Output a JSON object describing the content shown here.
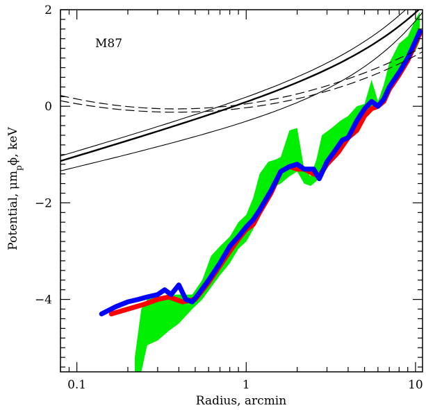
{
  "chart_data": {
    "type": "line",
    "xscale": "log",
    "xlabel": "Radius, arcmin",
    "ylabel": "Potential, μm",
    "ylabel_subscript": "p",
    "ylabel_after": "ϕ, keV",
    "annotation": "M87",
    "xlim": [
      0.08,
      11
    ],
    "ylim": [
      -5.5,
      2
    ],
    "x_ticks": [
      {
        "value": 0.1,
        "label": "0.1"
      },
      {
        "value": 1,
        "label": "1"
      },
      {
        "value": 10,
        "label": "10"
      }
    ],
    "y_ticks": [
      {
        "value": -4,
        "label": "−4"
      },
      {
        "value": -2,
        "label": "−2"
      },
      {
        "value": 0,
        "label": "0"
      },
      {
        "value": 2,
        "label": "2"
      }
    ],
    "grid": false,
    "legend": "none",
    "colors": {
      "green": "#00ee00",
      "red": "#ff0000",
      "blue": "#0000ff",
      "black": "#000000"
    },
    "green_band": {
      "x": [
        0.22,
        0.24,
        0.26,
        0.3,
        0.35,
        0.4,
        0.48,
        0.55,
        0.62,
        0.7,
        0.8,
        0.9,
        1.0,
        1.1,
        1.2,
        1.35,
        1.5,
        1.6,
        1.8,
        2.0,
        2.2,
        2.4,
        2.6,
        2.8,
        3.2,
        3.6,
        4.0,
        4.5,
        5.0,
        5.5,
        6.0,
        6.5,
        7.0,
        8.0,
        9.0,
        10.0,
        10.6
      ],
      "upper": [
        -5.2,
        -4.2,
        -4.0,
        -3.95,
        -3.9,
        -3.9,
        -3.9,
        -3.6,
        -3.1,
        -2.9,
        -2.7,
        -2.4,
        -2.25,
        -1.9,
        -1.4,
        -1.15,
        -1.1,
        -1.05,
        -0.5,
        -0.45,
        -1.3,
        -1.45,
        -1.1,
        -0.6,
        -0.45,
        -0.3,
        -0.2,
        0.0,
        0.05,
        0.55,
        0.1,
        0.45,
        0.9,
        1.3,
        1.45,
        1.8,
        1.95
      ],
      "lower": [
        -5.5,
        -5.5,
        -4.95,
        -4.85,
        -4.65,
        -4.5,
        -4.2,
        -4.0,
        -3.75,
        -3.5,
        -3.25,
        -2.95,
        -2.8,
        -2.55,
        -2.2,
        -1.9,
        -1.65,
        -1.6,
        -1.45,
        -1.35,
        -1.6,
        -1.65,
        -1.55,
        -1.3,
        -1.05,
        -0.85,
        -0.65,
        -0.4,
        -0.25,
        0.0,
        -0.05,
        0.1,
        0.25,
        0.65,
        0.95,
        1.15,
        1.35
      ]
    },
    "series": [
      {
        "color": "#ff0000",
        "width": 7,
        "x": [
          0.16,
          0.2,
          0.25,
          0.3,
          0.35,
          0.42,
          0.5,
          0.6,
          0.7,
          0.8,
          0.9,
          1.0,
          1.1,
          1.2,
          1.4,
          1.6,
          1.8,
          2.0,
          2.2,
          2.5,
          2.7,
          3.0,
          3.5,
          4.0,
          4.5,
          5.0,
          5.5,
          6.0,
          6.5,
          7.0,
          8.0,
          9.0,
          10.0,
          10.6
        ],
        "y": [
          -4.3,
          -4.2,
          -4.1,
          -4.0,
          -3.95,
          -4.05,
          -4.0,
          -3.65,
          -3.3,
          -3.0,
          -2.75,
          -2.55,
          -2.45,
          -2.2,
          -1.8,
          -1.35,
          -1.25,
          -1.3,
          -1.3,
          -1.4,
          -1.45,
          -1.2,
          -0.95,
          -0.65,
          -0.5,
          -0.2,
          -0.05,
          0.0,
          0.1,
          0.35,
          0.65,
          0.95,
          1.3,
          1.5
        ]
      },
      {
        "color": "#0000ff",
        "width": 7,
        "x": [
          0.14,
          0.17,
          0.2,
          0.23,
          0.26,
          0.3,
          0.33,
          0.36,
          0.4,
          0.44,
          0.48,
          0.52,
          0.6,
          0.7,
          0.8,
          0.9,
          1.0,
          1.1,
          1.2,
          1.4,
          1.6,
          1.8,
          2.0,
          2.2,
          2.5,
          2.7,
          3.0,
          3.3,
          3.7,
          4.0,
          4.5,
          5.0,
          5.5,
          6.0,
          6.5,
          7.0,
          8.0,
          9.0,
          10.0,
          10.6
        ],
        "y": [
          -4.3,
          -4.15,
          -4.05,
          -4.0,
          -3.95,
          -3.9,
          -3.8,
          -3.9,
          -3.7,
          -4.0,
          -4.05,
          -3.9,
          -3.6,
          -3.25,
          -2.9,
          -2.7,
          -2.5,
          -2.35,
          -2.15,
          -1.75,
          -1.35,
          -1.25,
          -1.2,
          -1.3,
          -1.3,
          -1.5,
          -1.15,
          -0.95,
          -0.7,
          -0.65,
          -0.3,
          -0.05,
          0.1,
          0.0,
          0.15,
          0.4,
          0.7,
          1.0,
          1.35,
          1.55
        ]
      },
      {
        "color": "#000000",
        "width": 2.4,
        "dash": "",
        "fn": [
          0.0,
          1.04,
          0.0,
          0.09
        ]
      },
      {
        "color": "#000000",
        "width": 1.1,
        "dash": "",
        "fn": [
          0.08,
          1.02,
          0.0,
          0.11
        ]
      },
      {
        "color": "#000000",
        "width": 1.1,
        "dash": "",
        "fn": [
          -0.45,
          0.82,
          0.0,
          0.14
        ]
      },
      {
        "color": "#000000",
        "width": 1.2,
        "dash": "12 7",
        "fn": [
          0.05,
          0.5,
          0.6,
          0.0
        ]
      },
      {
        "color": "#000000",
        "width": 1.2,
        "dash": "12 7",
        "fn": [
          -0.05,
          0.4,
          0.5,
          0.02
        ]
      }
    ]
  }
}
